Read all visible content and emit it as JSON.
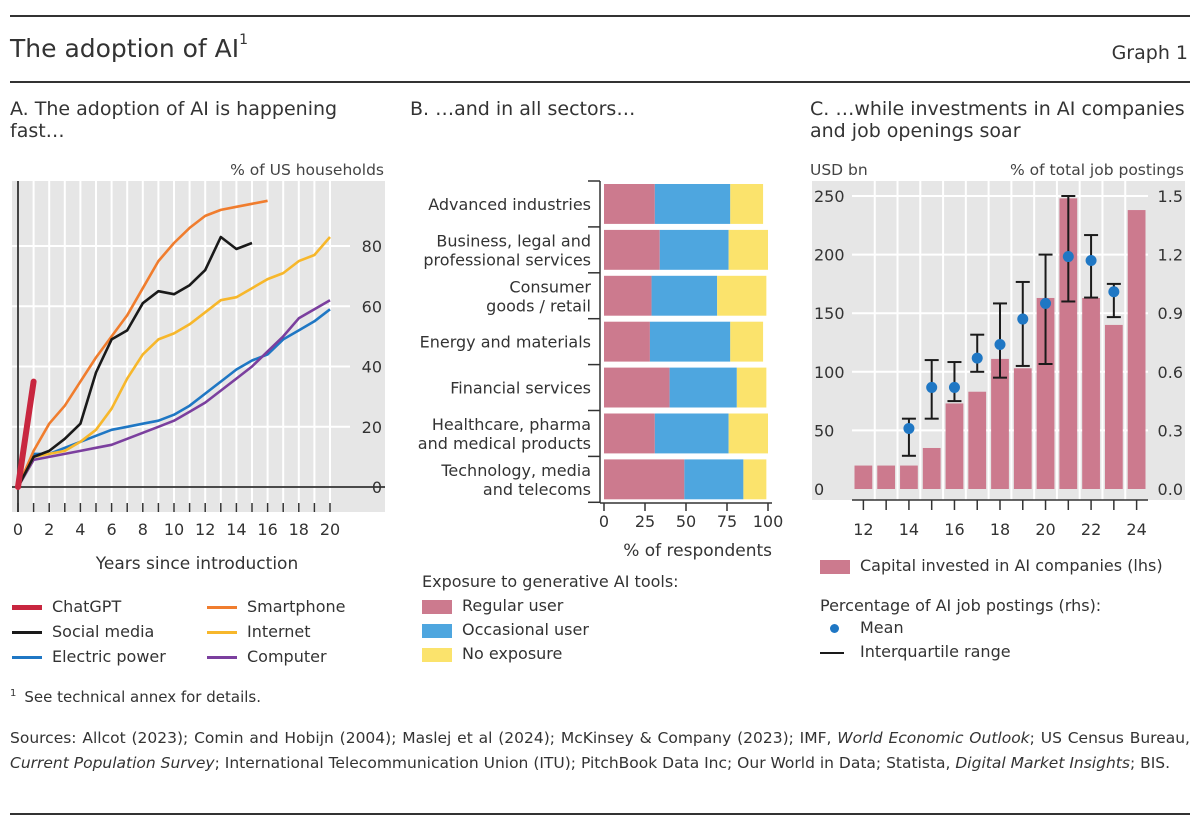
{
  "header": {
    "title": "The adoption of AI",
    "title_sup": "1",
    "graph_label": "Graph 1"
  },
  "panel_a_title": "A. The adoption of AI is happening fast…",
  "panel_b_title": "B. …and in all sectors…",
  "panel_c_title": "C. …while investments in AI companies and job openings soar",
  "chart_data": [
    {
      "type": "line",
      "panel": "A",
      "xlabel": "Years since introduction",
      "ylabel": "% of US households",
      "xlim": [
        0,
        20
      ],
      "ylim": [
        -2,
        102
      ],
      "xticks": [
        0,
        2,
        4,
        6,
        8,
        10,
        12,
        14,
        16,
        18,
        20
      ],
      "yticks": [
        0,
        20,
        40,
        60,
        80
      ],
      "grid": true,
      "series": [
        {
          "name": "ChatGPT",
          "color": "#c8263f",
          "x": [
            0,
            1
          ],
          "y": [
            0,
            35
          ]
        },
        {
          "name": "Social media",
          "color": "#1a1a1a",
          "x": [
            0,
            1,
            2,
            3,
            4,
            5,
            6,
            7,
            8,
            9,
            10,
            11,
            12,
            13,
            14,
            15
          ],
          "y": [
            0,
            10,
            12,
            16,
            21,
            38,
            49,
            52,
            61,
            65,
            64,
            67,
            72,
            83,
            79,
            81
          ]
        },
        {
          "name": "Electric power",
          "color": "#1f77c4",
          "x": [
            0,
            1,
            2,
            3,
            4,
            5,
            6,
            7,
            8,
            9,
            10,
            11,
            12,
            13,
            14,
            15,
            16,
            17,
            18,
            19,
            20
          ],
          "y": [
            0,
            11,
            11,
            13,
            15,
            17,
            19,
            20,
            21,
            22,
            24,
            27,
            31,
            35,
            39,
            42,
            44,
            49,
            52,
            55,
            59
          ]
        },
        {
          "name": "Smartphone",
          "color": "#f07d2e",
          "x": [
            0,
            1,
            2,
            3,
            4,
            5,
            6,
            7,
            8,
            9,
            10,
            11,
            12,
            13,
            14,
            15,
            16
          ],
          "y": [
            0,
            12,
            21,
            27,
            35,
            43,
            50,
            57,
            66,
            75,
            81,
            86,
            90,
            92,
            93,
            94,
            95
          ]
        },
        {
          "name": "Internet",
          "color": "#f7b72b",
          "x": [
            0,
            1,
            2,
            3,
            4,
            5,
            6,
            7,
            8,
            9,
            10,
            11,
            12,
            13,
            14,
            15,
            16,
            17,
            18,
            19,
            20
          ],
          "y": [
            0,
            10,
            11,
            12,
            15,
            19,
            26,
            36,
            44,
            49,
            51,
            54,
            58,
            62,
            63,
            66,
            69,
            71,
            75,
            77,
            83
          ]
        },
        {
          "name": "Computer",
          "color": "#7b3f9e",
          "x": [
            0,
            1,
            2,
            3,
            4,
            5,
            6,
            7,
            8,
            9,
            10,
            11,
            12,
            13,
            14,
            15,
            16,
            17,
            18,
            19,
            20
          ],
          "y": [
            0,
            9,
            10,
            11,
            12,
            13,
            14,
            16,
            18,
            20,
            22,
            25,
            28,
            32,
            36,
            40,
            45,
            50,
            56,
            59,
            62
          ]
        }
      ]
    },
    {
      "type": "bar",
      "panel": "B",
      "orientation": "horizontal",
      "stacked": true,
      "xlabel": "% of respondents",
      "xlim": [
        0,
        100
      ],
      "xticks": [
        0,
        25,
        50,
        75,
        100
      ],
      "legend_title": "Exposure to generative AI tools:",
      "categories": [
        "Advanced industries",
        "Business, legal and professional services",
        "Consumer goods / retail",
        "Energy and materials",
        "Financial services",
        "Healthcare, pharma and medical products",
        "Technology, media and telecoms"
      ],
      "category_lines": [
        [
          "Advanced industries"
        ],
        [
          "Business, legal and",
          "professional services"
        ],
        [
          "Consumer",
          "goods / retail"
        ],
        [
          "Energy and materials"
        ],
        [
          "Financial services"
        ],
        [
          "Healthcare, pharma",
          "and medical products"
        ],
        [
          "Technology, media",
          "and telecoms"
        ]
      ],
      "series": [
        {
          "name": "Regular user",
          "color": "#cc7a8e",
          "values": [
            31,
            34,
            29,
            28,
            40,
            31,
            49
          ]
        },
        {
          "name": "Occasional user",
          "color": "#4ea6df",
          "values": [
            46,
            42,
            40,
            49,
            41,
            45,
            36
          ]
        },
        {
          "name": "No exposure",
          "color": "#fbe36c",
          "values": [
            20,
            24,
            30,
            20,
            18,
            24,
            14
          ]
        }
      ]
    },
    {
      "type": "bar",
      "panel": "C",
      "ylabel_left": "USD bn",
      "ylabel_right": "% of total job postings",
      "ylim_left": [
        0,
        250
      ],
      "ylim_right": [
        0,
        1.5
      ],
      "yticks_left": [
        "0",
        "50",
        "100",
        "150",
        "200",
        "250"
      ],
      "yticks_right": [
        "0.0",
        "0.3",
        "0.6",
        "0.9",
        "1.2",
        "1.5"
      ],
      "categories": [
        "12",
        "13",
        "14",
        "15",
        "16",
        "17",
        "18",
        "19",
        "20",
        "21",
        "22",
        "23",
        "24"
      ],
      "xtick_labels": [
        "12",
        "14",
        "16",
        "18",
        "20",
        "22",
        "24"
      ],
      "series": [
        {
          "name": "Capital invested in AI companies (lhs)",
          "axis": "left",
          "color": "#cc7a8e",
          "values": [
            20,
            20,
            20,
            35,
            73,
            83,
            111,
            103,
            163,
            248,
            163,
            140,
            238
          ]
        },
        {
          "name": "Mean",
          "axis": "right",
          "color": "#1f77c4",
          "x": [
            "14",
            "15",
            "16",
            "17",
            "18",
            "19",
            "20",
            "21",
            "22",
            "23"
          ],
          "values": [
            0.31,
            0.52,
            0.52,
            0.67,
            0.74,
            0.87,
            0.95,
            1.19,
            1.17,
            1.01
          ]
        },
        {
          "name": "Interquartile range",
          "axis": "right",
          "color": "#1a1a1a",
          "x": [
            "14",
            "15",
            "16",
            "17",
            "18",
            "19",
            "20",
            "21",
            "22",
            "23"
          ],
          "low": [
            0.17,
            0.36,
            0.45,
            0.6,
            0.57,
            0.63,
            0.64,
            0.96,
            0.98,
            0.88
          ],
          "high": [
            0.36,
            0.66,
            0.65,
            0.79,
            0.95,
            1.06,
            1.2,
            1.5,
            1.3,
            1.05
          ]
        }
      ],
      "legend_subtitle": "Percentage of AI job postings (rhs):"
    }
  ],
  "footnote": {
    "marker": "1",
    "text": "See technical annex for details."
  },
  "sources": [
    {
      "text": "Sources: Allcot (2023); Comin and Hobijn (2004); Maslej et al (2024); McKinsey & Company (2023); IMF, ",
      "italic": false
    },
    {
      "text": "World Economic Outlook",
      "italic": true
    },
    {
      "text": "; US Census Bureau, ",
      "italic": false
    },
    {
      "text": "Current Population Survey",
      "italic": true
    },
    {
      "text": "; International Telecommunication Union (ITU); PitchBook Data Inc; Our World in Data; Statista, ",
      "italic": false
    },
    {
      "text": "Digital Market Insights",
      "italic": true
    },
    {
      "text": "; BIS.",
      "italic": false
    }
  ]
}
